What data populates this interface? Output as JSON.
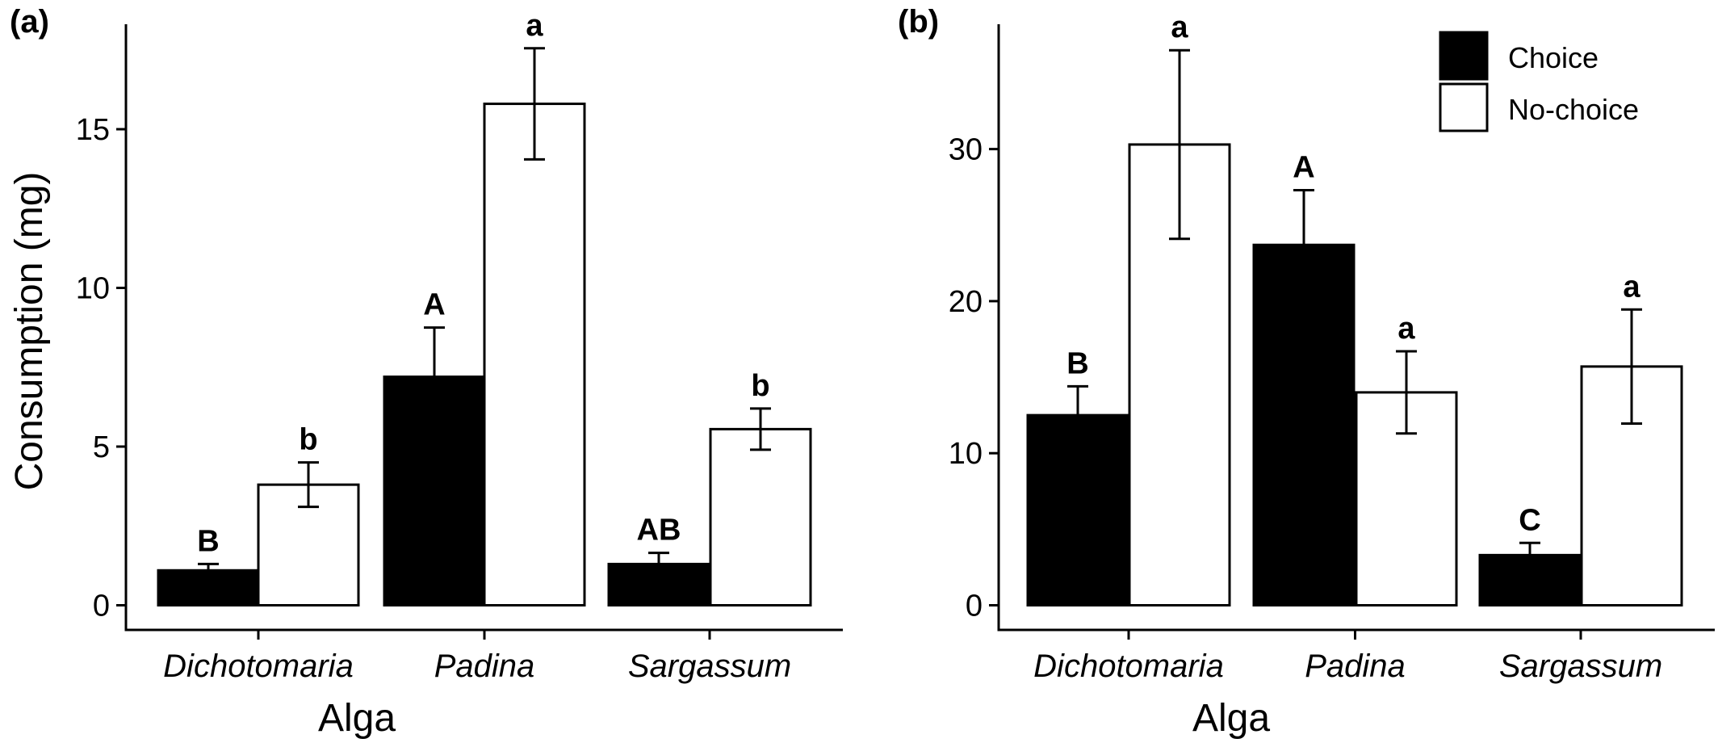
{
  "legend": {
    "items": [
      {
        "label": "Choice",
        "color": "#000000"
      },
      {
        "label": "No-choice",
        "color": "#ffffff"
      }
    ],
    "placement": "top-right of panel (b)"
  },
  "chart_data": [
    {
      "type": "bar",
      "panel": "(a)",
      "title": "",
      "xlabel": "Alga",
      "ylabel": "Consumption (mg)",
      "categories": [
        "Dichotomaria",
        "Padina",
        "Sargassum"
      ],
      "ylim": [
        0,
        18
      ],
      "yticks": [
        0,
        5,
        10,
        15
      ],
      "grid": false,
      "series": [
        {
          "name": "Choice",
          "color": "#000000",
          "values": [
            1.1,
            7.2,
            1.3
          ],
          "errors": [
            0.2,
            1.55,
            0.35
          ],
          "letters": [
            "B",
            "A",
            "AB"
          ]
        },
        {
          "name": "No-choice",
          "color": "#ffffff",
          "values": [
            3.8,
            15.8,
            5.55
          ],
          "errors": [
            0.7,
            1.75,
            0.65
          ],
          "letters": [
            "b",
            "a",
            "b"
          ]
        }
      ]
    },
    {
      "type": "bar",
      "panel": "(b)",
      "title": "",
      "xlabel": "Alga",
      "ylabel": "",
      "categories": [
        "Dichotomaria",
        "Padina",
        "Sargassum"
      ],
      "ylim": [
        0,
        38
      ],
      "yticks": [
        0,
        10,
        20,
        30
      ],
      "grid": false,
      "series": [
        {
          "name": "Choice",
          "color": "#000000",
          "values": [
            12.5,
            23.7,
            3.3
          ],
          "errors": [
            1.9,
            3.6,
            0.8
          ],
          "letters": [
            "B",
            "A",
            "C"
          ]
        },
        {
          "name": "No-choice",
          "color": "#ffffff",
          "values": [
            30.3,
            14.0,
            15.7
          ],
          "errors": [
            6.2,
            2.7,
            3.75
          ],
          "letters": [
            "a",
            "a",
            "a"
          ]
        }
      ]
    }
  ]
}
